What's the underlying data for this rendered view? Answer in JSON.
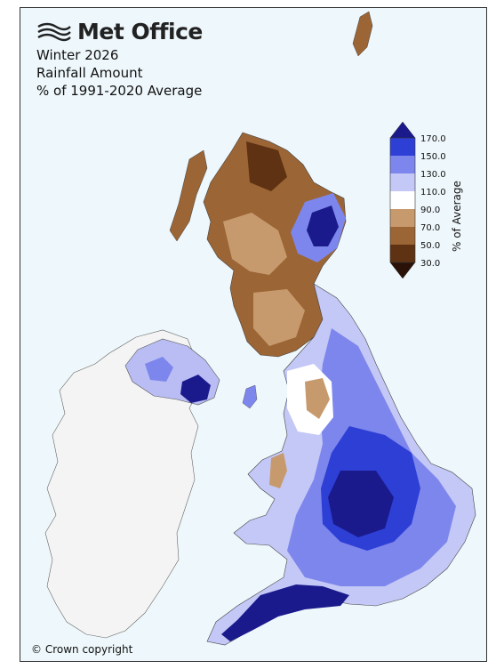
{
  "header": {
    "brand": "Met Office",
    "line1": "Winter 2026",
    "line2": "Rainfall Amount",
    "line3": "% of 1991-2020 Average"
  },
  "legend": {
    "axis_label": "% of Average",
    "ticks": [
      "170.0",
      "150.0",
      "130.0",
      "110.0",
      "90.0",
      "70.0",
      "50.0",
      "30.0"
    ],
    "colors": {
      "gt170": "#1a1a8c",
      "150_170": "#2e3fd6",
      "130_150": "#7d86ec",
      "110_130": "#c4c8f6",
      "90_110": "#ffffff",
      "70_90": "#c79a6e",
      "50_70": "#9b6535",
      "30_50": "#5e3212",
      "lt30": "#2a1208"
    }
  },
  "map": {
    "ireland_color": "#f4f4f4",
    "sea_color": "#eef7fb"
  },
  "footer": {
    "copyright": "© Crown copyright"
  }
}
